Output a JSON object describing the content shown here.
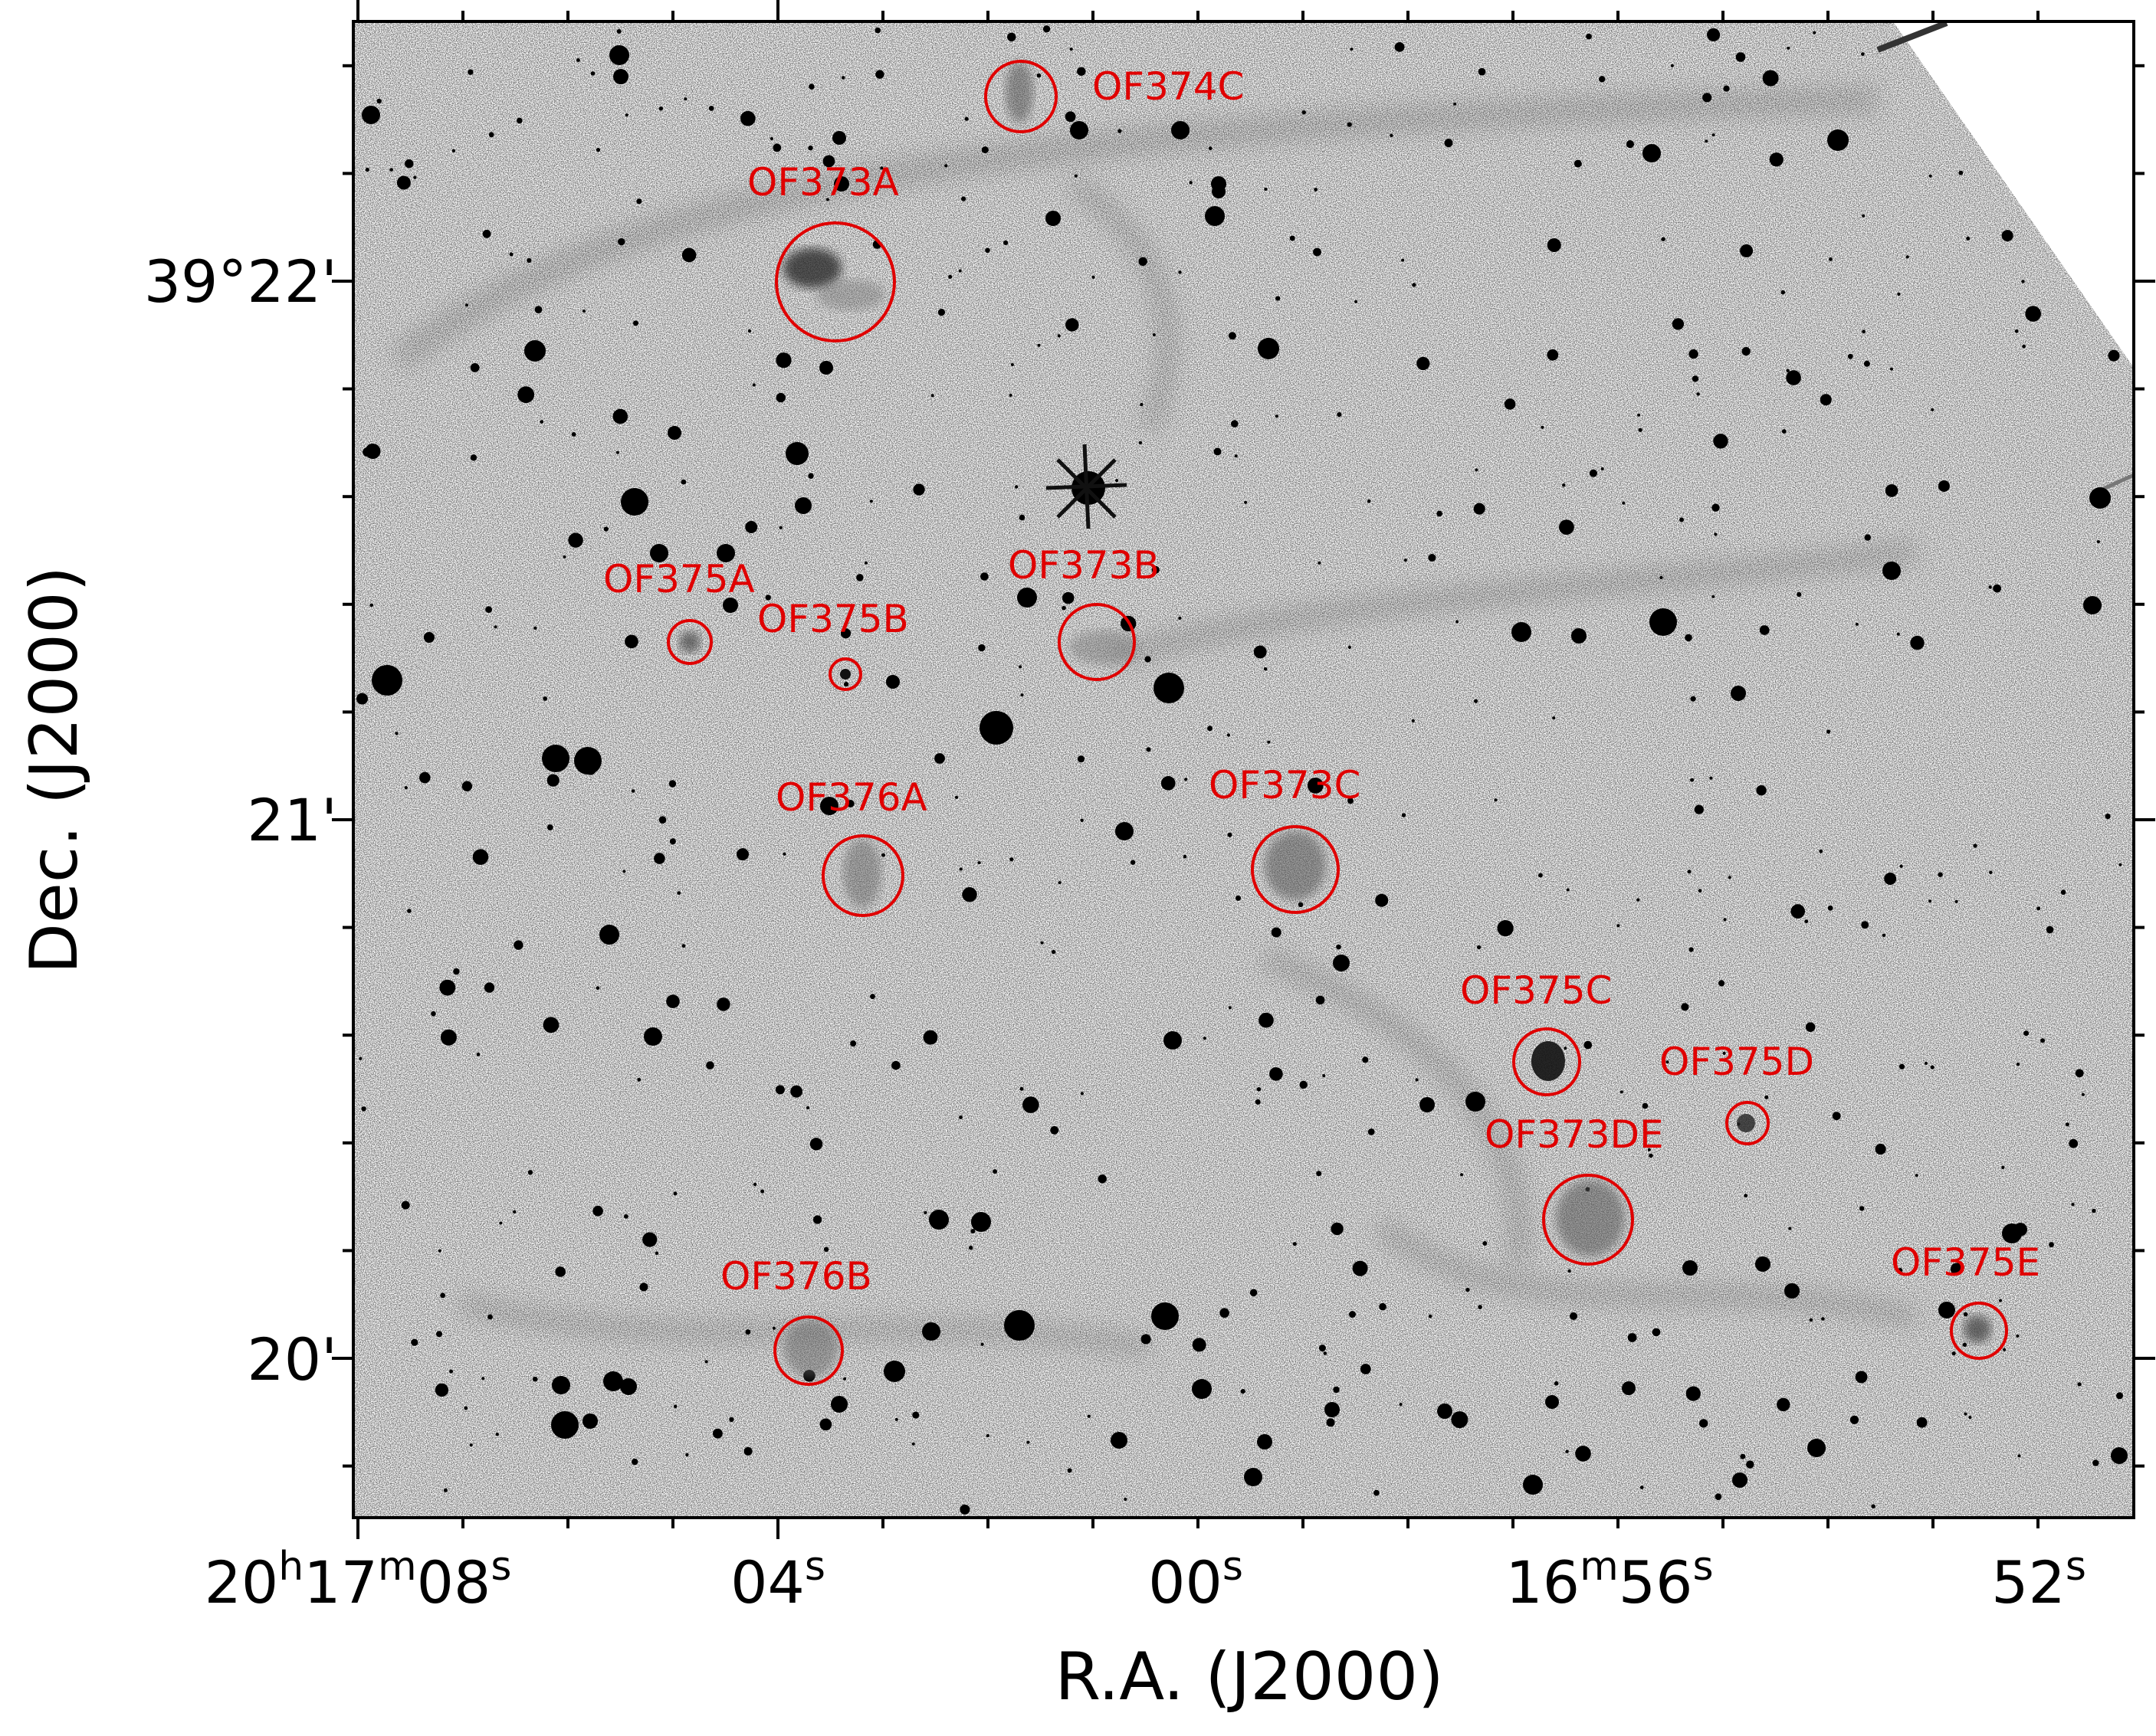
{
  "colors": {
    "marker": "#e00000",
    "stars": "#000000",
    "background": "#ffffff",
    "nebula": "#8a8a8a"
  },
  "axes": {
    "xlabel": "R.A. (J2000)",
    "ylabel": "Dec. (J2000)",
    "xticks": [
      {
        "h": "20",
        "m": "17",
        "s": "08"
      },
      {
        "h": "",
        "m": "",
        "s": "04"
      },
      {
        "h": "",
        "m": "",
        "s": "00"
      },
      {
        "h": "",
        "m": "16",
        "s": "56"
      },
      {
        "h": "",
        "m": "",
        "s": "52"
      }
    ],
    "yticks": [
      "39°22'",
      "21'",
      "20'"
    ]
  },
  "sources": [
    {
      "name": "OF374C"
    },
    {
      "name": "OF373A"
    },
    {
      "name": "OF373B"
    },
    {
      "name": "OF375A"
    },
    {
      "name": "OF375B"
    },
    {
      "name": "OF376A"
    },
    {
      "name": "OF373C"
    },
    {
      "name": "OF375C"
    },
    {
      "name": "OF375D"
    },
    {
      "name": "OF373DE"
    },
    {
      "name": "OF375E"
    },
    {
      "name": "OF376B"
    }
  ]
}
